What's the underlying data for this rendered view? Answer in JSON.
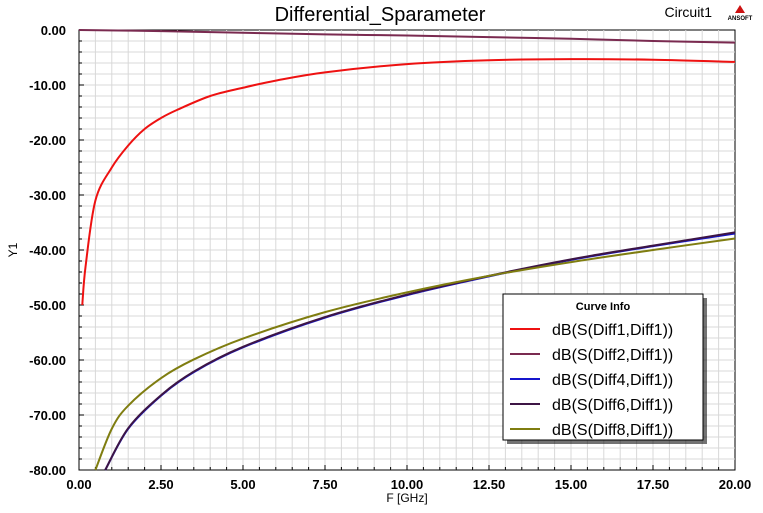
{
  "header": {
    "title": "Differential_Sparameter",
    "circuit": "Circuit1",
    "logo_text": "ANSOFT"
  },
  "colors": {
    "background": "#ffffff",
    "plot_background": "#ffffff",
    "grid": "#d8d8d8"
  },
  "chart_data": {
    "type": "line",
    "title": "Differential_Sparameter",
    "xlabel": "F [GHz]",
    "ylabel": "Y1",
    "xlim": [
      0,
      20
    ],
    "ylim": [
      -80,
      0
    ],
    "x_ticks": [
      "0.00",
      "2.50",
      "5.00",
      "7.50",
      "10.00",
      "12.50",
      "15.00",
      "17.50",
      "20.00"
    ],
    "y_ticks": [
      "0.00",
      "-10.00",
      "-20.00",
      "-30.00",
      "-40.00",
      "-50.00",
      "-60.00",
      "-70.00",
      "-80.00"
    ],
    "grid": true,
    "legend": {
      "title": "Curve Info",
      "placement": "bottom-right"
    },
    "series": [
      {
        "name": "dB(S(Diff1,Diff1))",
        "color": "#ee1111",
        "x": [
          0.1,
          0.2,
          0.5,
          1.0,
          1.5,
          2.0,
          2.5,
          3.0,
          4.0,
          5.0,
          6.0,
          7.5,
          10.0,
          12.5,
          15.0,
          17.5,
          20.0
        ],
        "y": [
          -50,
          -43,
          -31,
          -25,
          -21,
          -18,
          -16,
          -14.5,
          -12,
          -10.5,
          -9.2,
          -7.7,
          -6.2,
          -5.5,
          -5.3,
          -5.4,
          -5.8
        ]
      },
      {
        "name": "dB(S(Diff2,Diff1))",
        "color": "#7a2a50",
        "x": [
          0.0,
          2.5,
          5.0,
          7.5,
          10.0,
          12.5,
          15.0,
          17.5,
          20.0
        ],
        "y": [
          0.0,
          -0.2,
          -0.5,
          -0.8,
          -1.0,
          -1.3,
          -1.6,
          -2.0,
          -2.3
        ]
      },
      {
        "name": "dB(S(Diff4,Diff1))",
        "color": "#1515cc",
        "x": [
          0.8,
          1.5,
          2.5,
          3.5,
          5.0,
          7.5,
          10.0,
          12.5,
          15.0,
          17.5,
          20.0
        ],
        "y": [
          -80,
          -72.5,
          -66.5,
          -62.2,
          -57.7,
          -52.3,
          -48.2,
          -44.8,
          -41.8,
          -39.3,
          -37.0
        ]
      },
      {
        "name": "dB(S(Diff6,Diff1))",
        "color": "#3d1545",
        "x": [
          0.8,
          1.5,
          2.5,
          3.5,
          5.0,
          7.5,
          10.0,
          12.5,
          15.0,
          17.5,
          20.0
        ],
        "y": [
          -80,
          -72.4,
          -66.4,
          -62.1,
          -57.6,
          -52.2,
          -48.1,
          -44.7,
          -41.7,
          -39.2,
          -36.8
        ]
      },
      {
        "name": "dB(S(Diff8,Diff1))",
        "color": "#7f7d10",
        "x": [
          0.5,
          1.0,
          1.5,
          2.5,
          3.5,
          5.0,
          7.5,
          10.0,
          12.5,
          15.0,
          17.5,
          20.0
        ],
        "y": [
          -80,
          -72.5,
          -68.3,
          -63.3,
          -59.9,
          -56.1,
          -51.3,
          -47.7,
          -44.7,
          -42.2,
          -40.0,
          -37.9
        ]
      }
    ]
  }
}
